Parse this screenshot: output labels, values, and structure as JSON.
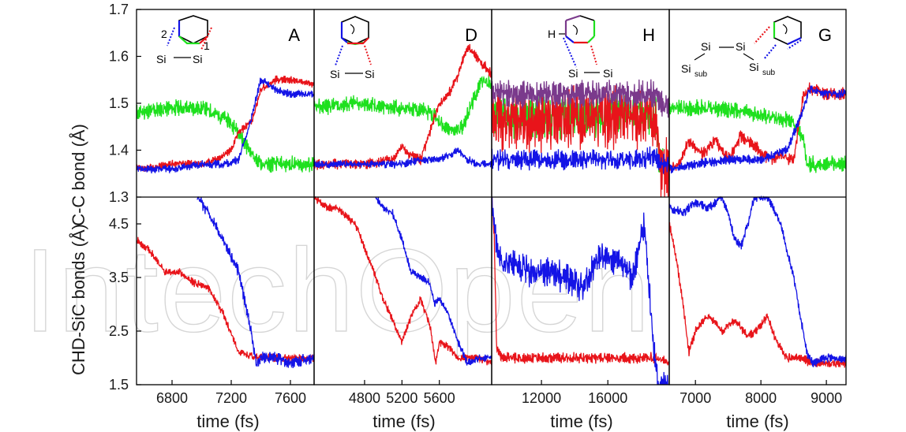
{
  "watermark": "IntechOpen",
  "chart_data": {
    "type": "line",
    "shared_labels": {
      "xlabel": "time (fs)",
      "top_ylabel": "C-C bond (Å)",
      "bottom_ylabel": "CHD-SiC bonds (Å)"
    },
    "top_yticks": [
      "1.7",
      "1.6",
      "1.5",
      "1.4",
      "1.3"
    ],
    "top_ylim": [
      1.3,
      1.7
    ],
    "bottom_yticks": [
      "4.5",
      "3.5",
      "2.5",
      "1.5"
    ],
    "bottom_ylim": [
      1.5,
      5.0
    ],
    "colors": {
      "red": "#e8141a",
      "green": "#1ee01e",
      "blue": "#1414e6",
      "purple": "#7a3a8c"
    },
    "panels": [
      {
        "letter": "A",
        "xlim": [
          6560,
          7760
        ],
        "xticks": [
          "6800",
          "7200",
          "7600"
        ],
        "inset": {
          "labels": [
            "2",
            "1",
            "Si",
            "Si"
          ]
        },
        "top_series": [
          {
            "color": "green",
            "x": [
              6560,
              6800,
              7000,
              7150,
              7250,
              7320,
              7400,
              7500,
              7600,
              7760
            ],
            "y": [
              1.48,
              1.49,
              1.49,
              1.47,
              1.44,
              1.4,
              1.37,
              1.37,
              1.37,
              1.37
            ],
            "noise": 0.012
          },
          {
            "color": "red",
            "x": [
              6560,
              6800,
              7000,
              7100,
              7200,
              7250,
              7300,
              7350,
              7400,
              7500,
              7600,
              7760
            ],
            "y": [
              1.36,
              1.37,
              1.37,
              1.38,
              1.4,
              1.44,
              1.45,
              1.47,
              1.53,
              1.55,
              1.55,
              1.54
            ],
            "noise": 0.006
          },
          {
            "color": "blue",
            "x": [
              6560,
              6800,
              7000,
              7150,
              7250,
              7320,
              7400,
              7500,
              7600,
              7760
            ],
            "y": [
              1.36,
              1.36,
              1.37,
              1.37,
              1.38,
              1.45,
              1.55,
              1.53,
              1.52,
              1.52
            ],
            "noise": 0.006
          }
        ],
        "bottom_series": [
          {
            "color": "red",
            "x": [
              6560,
              6650,
              6750,
              6850,
              6950,
              7050,
              7150,
              7250,
              7400,
              7600,
              7760
            ],
            "y": [
              4.2,
              4.0,
              3.6,
              3.6,
              3.4,
              3.3,
              2.8,
              2.1,
              2.0,
              2.0,
              2.0
            ],
            "noise": 0.05
          },
          {
            "color": "blue",
            "x": [
              6970,
              7050,
              7150,
              7250,
              7320,
              7370,
              7400,
              7500,
              7600,
              7760
            ],
            "y": [
              5.0,
              4.7,
              4.2,
              3.6,
              2.7,
              1.9,
              2.0,
              2.0,
              1.9,
              2.0
            ],
            "noise": 0.08
          }
        ]
      },
      {
        "letter": "D",
        "xlim": [
          4260,
          6160
        ],
        "xticks": [
          "4800",
          "5200",
          "5600"
        ],
        "inset": {
          "labels": [
            "Si",
            "Si"
          ]
        },
        "top_series": [
          {
            "color": "green",
            "x": [
              4260,
              4700,
              5100,
              5300,
              5500,
              5650,
              5750,
              5850,
              5950,
              6050,
              6160
            ],
            "y": [
              1.49,
              1.5,
              1.49,
              1.49,
              1.48,
              1.45,
              1.44,
              1.45,
              1.5,
              1.55,
              1.54
            ],
            "noise": 0.012
          },
          {
            "color": "red",
            "x": [
              4260,
              4800,
              5100,
              5200,
              5280,
              5400,
              5500,
              5600,
              5700,
              5800,
              5900,
              6000,
              6160
            ],
            "y": [
              1.37,
              1.37,
              1.38,
              1.41,
              1.39,
              1.38,
              1.44,
              1.5,
              1.52,
              1.56,
              1.62,
              1.6,
              1.56
            ],
            "noise": 0.008
          },
          {
            "color": "blue",
            "x": [
              4260,
              4800,
              5200,
              5400,
              5600,
              5700,
              5800,
              5900,
              6000,
              6160
            ],
            "y": [
              1.37,
              1.37,
              1.37,
              1.38,
              1.38,
              1.39,
              1.4,
              1.38,
              1.37,
              1.37
            ],
            "noise": 0.006
          }
        ],
        "bottom_series": [
          {
            "color": "red",
            "x": [
              4260,
              4400,
              4500,
              4700,
              4900,
              5000,
              5100,
              5200,
              5280,
              5400,
              5500,
              5560,
              5600,
              5700,
              5800,
              6000,
              6160
            ],
            "y": [
              5.0,
              4.8,
              4.8,
              4.5,
              3.6,
              3.1,
              2.7,
              2.3,
              2.7,
              3.1,
              2.6,
              1.9,
              2.3,
              2.2,
              2.0,
              2.0,
              1.9
            ],
            "noise": 0.05
          },
          {
            "color": "blue",
            "x": [
              4920,
              5000,
              5100,
              5200,
              5300,
              5400,
              5500,
              5550,
              5600,
              5700,
              5800,
              5900,
              6000,
              6160
            ],
            "y": [
              5.0,
              4.8,
              4.7,
              4.2,
              3.6,
              3.5,
              3.4,
              3.0,
              3.1,
              2.8,
              2.3,
              1.9,
              2.0,
              2.0
            ],
            "noise": 0.05
          }
        ]
      },
      {
        "letter": "H",
        "xlim": [
          9000,
          19700
        ],
        "xticks": [
          "12000",
          "16000"
        ],
        "inset": {
          "labels": [
            "H",
            "Si",
            "Si"
          ]
        },
        "top_series": [
          {
            "color": "green",
            "x": [
              9000,
              12000,
              15000,
              18000,
              18900,
              19100,
              19700
            ],
            "y": [
              1.47,
              1.47,
              1.47,
              1.48,
              1.48,
              1.37,
              1.37
            ],
            "noise": 0.03
          },
          {
            "color": "red",
            "x": [
              9000,
              12000,
              15000,
              18000,
              18900,
              19100,
              19700
            ],
            "y": [
              1.47,
              1.46,
              1.47,
              1.47,
              1.47,
              1.36,
              1.36
            ],
            "noise": 0.045
          },
          {
            "color": "purple",
            "x": [
              9000,
              12000,
              15000,
              18000,
              18900,
              19100,
              19700
            ],
            "y": [
              1.52,
              1.52,
              1.52,
              1.52,
              1.52,
              1.5,
              1.5
            ],
            "noise": 0.02
          },
          {
            "color": "blue",
            "x": [
              9000,
              12000,
              15000,
              18000,
              18900,
              19100,
              19700
            ],
            "y": [
              1.38,
              1.38,
              1.38,
              1.38,
              1.39,
              1.37,
              1.37
            ],
            "noise": 0.015
          }
        ],
        "bottom_series": [
          {
            "color": "red",
            "x": [
              9000,
              9150,
              9300,
              9600,
              10500,
              12000,
              15000,
              18000,
              19000,
              19700
            ],
            "y": [
              5.0,
              4.3,
              2.2,
              2.0,
              2.0,
              2.0,
              2.0,
              2.0,
              2.0,
              1.9
            ],
            "noise": 0.07
          },
          {
            "color": "blue",
            "x": [
              9000,
              9300,
              9600,
              10500,
              11500,
              12500,
              13500,
              14500,
              15500,
              16500,
              17500,
              18200,
              18600,
              19000,
              19700
            ],
            "y": [
              5.0,
              4.0,
              3.8,
              3.7,
              3.6,
              3.6,
              3.5,
              3.3,
              3.9,
              3.8,
              3.5,
              4.5,
              2.8,
              1.5,
              1.5
            ],
            "noise": 0.2
          }
        ]
      },
      {
        "letter": "G",
        "xlim": [
          6600,
          9300
        ],
        "xticks": [
          "7000",
          "8000",
          "9000"
        ],
        "inset": {
          "labels": [
            "Si",
            "Si",
            "Si",
            "sub",
            "Si",
            "sub"
          ]
        },
        "top_series": [
          {
            "color": "green",
            "x": [
              6600,
              7200,
              7800,
              8200,
              8500,
              8650,
              8700,
              9000,
              9300
            ],
            "y": [
              1.49,
              1.49,
              1.48,
              1.47,
              1.46,
              1.42,
              1.37,
              1.37,
              1.37
            ],
            "noise": 0.012
          },
          {
            "color": "red",
            "x": [
              6600,
              6750,
              6900,
              7100,
              7300,
              7500,
              7700,
              7900,
              8100,
              8300,
              8500,
              8650,
              8750,
              9000,
              9300
            ],
            "y": [
              1.36,
              1.37,
              1.42,
              1.39,
              1.42,
              1.38,
              1.43,
              1.41,
              1.38,
              1.39,
              1.38,
              1.52,
              1.53,
              1.52,
              1.52
            ],
            "noise": 0.01
          },
          {
            "color": "blue",
            "x": [
              6600,
              7000,
              7500,
              8000,
              8400,
              8600,
              8750,
              9000,
              9300
            ],
            "y": [
              1.36,
              1.37,
              1.38,
              1.38,
              1.4,
              1.47,
              1.53,
              1.52,
              1.52
            ],
            "noise": 0.007
          }
        ],
        "bottom_series": [
          {
            "color": "red",
            "x": [
              6600,
              6700,
              6800,
              6900,
              7000,
              7200,
              7400,
              7600,
              7800,
              8000,
              8100,
              8200,
              8400,
              8600,
              8800,
              9300
            ],
            "y": [
              4.5,
              3.9,
              3.1,
              2.1,
              2.5,
              2.8,
              2.5,
              2.7,
              2.4,
              2.6,
              2.8,
              2.4,
              2.0,
              2.0,
              1.9,
              1.9
            ],
            "noise": 0.06
          },
          {
            "color": "blue",
            "x": [
              6600,
              6800,
              7000,
              7200,
              7400,
              7500,
              7600,
              7700,
              7800,
              7900,
              8100,
              8300,
              8500,
              8600,
              8700,
              8800,
              9000,
              9300
            ],
            "y": [
              4.8,
              4.7,
              4.9,
              4.8,
              5.0,
              4.7,
              4.2,
              4.1,
              4.5,
              5.0,
              5.0,
              4.5,
              3.5,
              2.8,
              2.1,
              1.9,
              2.0,
              2.0
            ],
            "noise": 0.06
          }
        ]
      }
    ]
  }
}
